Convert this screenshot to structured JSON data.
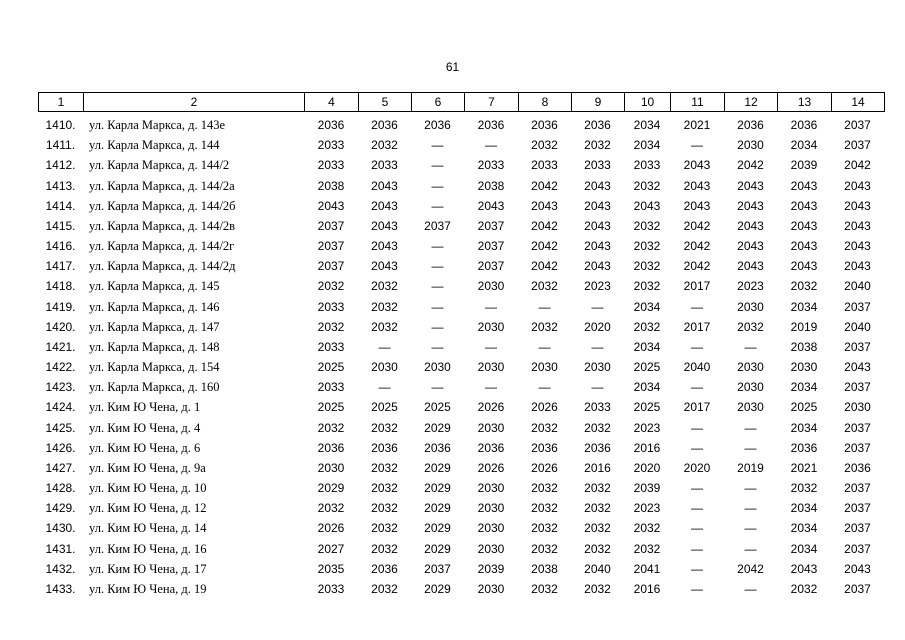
{
  "page_number": "61",
  "table": {
    "header": [
      "1",
      "2",
      "4",
      "5",
      "6",
      "7",
      "8",
      "9",
      "10",
      "11",
      "12",
      "13",
      "14"
    ],
    "rows": [
      [
        "1410.",
        "ул. Карла Маркса, д. 143е",
        "2036",
        "2036",
        "2036",
        "2036",
        "2036",
        "2036",
        "2034",
        "2021",
        "2036",
        "2036",
        "2037"
      ],
      [
        "1411.",
        "ул. Карла Маркса, д. 144",
        "2033",
        "2032",
        "—",
        "—",
        "2032",
        "2032",
        "2034",
        "—",
        "2030",
        "2034",
        "2037"
      ],
      [
        "1412.",
        "ул. Карла Маркса, д. 144/2",
        "2033",
        "2033",
        "—",
        "2033",
        "2033",
        "2033",
        "2033",
        "2043",
        "2042",
        "2039",
        "2042"
      ],
      [
        "1413.",
        "ул. Карла Маркса, д. 144/2а",
        "2038",
        "2043",
        "—",
        "2038",
        "2042",
        "2043",
        "2032",
        "2043",
        "2043",
        "2043",
        "2043"
      ],
      [
        "1414.",
        "ул. Карла Маркса, д. 144/2б",
        "2043",
        "2043",
        "—",
        "2043",
        "2043",
        "2043",
        "2043",
        "2043",
        "2043",
        "2043",
        "2043"
      ],
      [
        "1415.",
        "ул. Карла Маркса, д. 144/2в",
        "2037",
        "2043",
        "2037",
        "2037",
        "2042",
        "2043",
        "2032",
        "2042",
        "2043",
        "2043",
        "2043"
      ],
      [
        "1416.",
        "ул. Карла Маркса, д. 144/2г",
        "2037",
        "2043",
        "—",
        "2037",
        "2042",
        "2043",
        "2032",
        "2042",
        "2043",
        "2043",
        "2043"
      ],
      [
        "1417.",
        "ул. Карла Маркса, д. 144/2д",
        "2037",
        "2043",
        "—",
        "2037",
        "2042",
        "2043",
        "2032",
        "2042",
        "2043",
        "2043",
        "2043"
      ],
      [
        "1418.",
        "ул. Карла Маркса, д. 145",
        "2032",
        "2032",
        "—",
        "2030",
        "2032",
        "2023",
        "2032",
        "2017",
        "2023",
        "2032",
        "2040"
      ],
      [
        "1419.",
        "ул. Карла Маркса, д. 146",
        "2033",
        "2032",
        "—",
        "—",
        "—",
        "—",
        "2034",
        "—",
        "2030",
        "2034",
        "2037"
      ],
      [
        "1420.",
        "ул. Карла Маркса, д. 147",
        "2032",
        "2032",
        "—",
        "2030",
        "2032",
        "2020",
        "2032",
        "2017",
        "2032",
        "2019",
        "2040"
      ],
      [
        "1421.",
        "ул. Карла Маркса, д. 148",
        "2033",
        "—",
        "—",
        "—",
        "—",
        "—",
        "2034",
        "—",
        "—",
        "2038",
        "2037"
      ],
      [
        "1422.",
        "ул. Карла Маркса, д. 154",
        "2025",
        "2030",
        "2030",
        "2030",
        "2030",
        "2030",
        "2025",
        "2040",
        "2030",
        "2030",
        "2043"
      ],
      [
        "1423.",
        "ул. Карла Маркса, д. 160",
        "2033",
        "—",
        "—",
        "—",
        "—",
        "—",
        "2034",
        "—",
        "2030",
        "2034",
        "2037"
      ],
      [
        "1424.",
        "ул. Ким Ю Чена, д. 1",
        "2025",
        "2025",
        "2025",
        "2026",
        "2026",
        "2033",
        "2025",
        "2017",
        "2030",
        "2025",
        "2030"
      ],
      [
        "1425.",
        "ул. Ким Ю Чена, д. 4",
        "2032",
        "2032",
        "2029",
        "2030",
        "2032",
        "2032",
        "2023",
        "—",
        "—",
        "2034",
        "2037"
      ],
      [
        "1426.",
        "ул. Ким Ю Чена, д. 6",
        "2036",
        "2036",
        "2036",
        "2036",
        "2036",
        "2036",
        "2016",
        "—",
        "—",
        "2036",
        "2037"
      ],
      [
        "1427.",
        "ул. Ким Ю Чена, д. 9а",
        "2030",
        "2032",
        "2029",
        "2026",
        "2026",
        "2016",
        "2020",
        "2020",
        "2019",
        "2021",
        "2036"
      ],
      [
        "1428.",
        "ул. Ким Ю Чена, д. 10",
        "2029",
        "2032",
        "2029",
        "2030",
        "2032",
        "2032",
        "2039",
        "—",
        "—",
        "2032",
        "2037"
      ],
      [
        "1429.",
        "ул. Ким Ю Чена, д. 12",
        "2032",
        "2032",
        "2029",
        "2030",
        "2032",
        "2032",
        "2023",
        "—",
        "—",
        "2034",
        "2037"
      ],
      [
        "1430.",
        "ул. Ким Ю Чена, д. 14",
        "2026",
        "2032",
        "2029",
        "2030",
        "2032",
        "2032",
        "2032",
        "—",
        "—",
        "2034",
        "2037"
      ],
      [
        "1431.",
        "ул. Ким Ю Чена, д. 16",
        "2027",
        "2032",
        "2029",
        "2030",
        "2032",
        "2032",
        "2032",
        "—",
        "—",
        "2034",
        "2037"
      ],
      [
        "1432.",
        "ул. Ким Ю Чена, д. 17",
        "2035",
        "2036",
        "2037",
        "2039",
        "2038",
        "2040",
        "2041",
        "—",
        "2042",
        "2043",
        "2043"
      ],
      [
        "1433.",
        "ул. Ким Ю Чена, д. 19",
        "2033",
        "2032",
        "2029",
        "2030",
        "2032",
        "2032",
        "2016",
        "—",
        "—",
        "2032",
        "2037"
      ]
    ]
  }
}
